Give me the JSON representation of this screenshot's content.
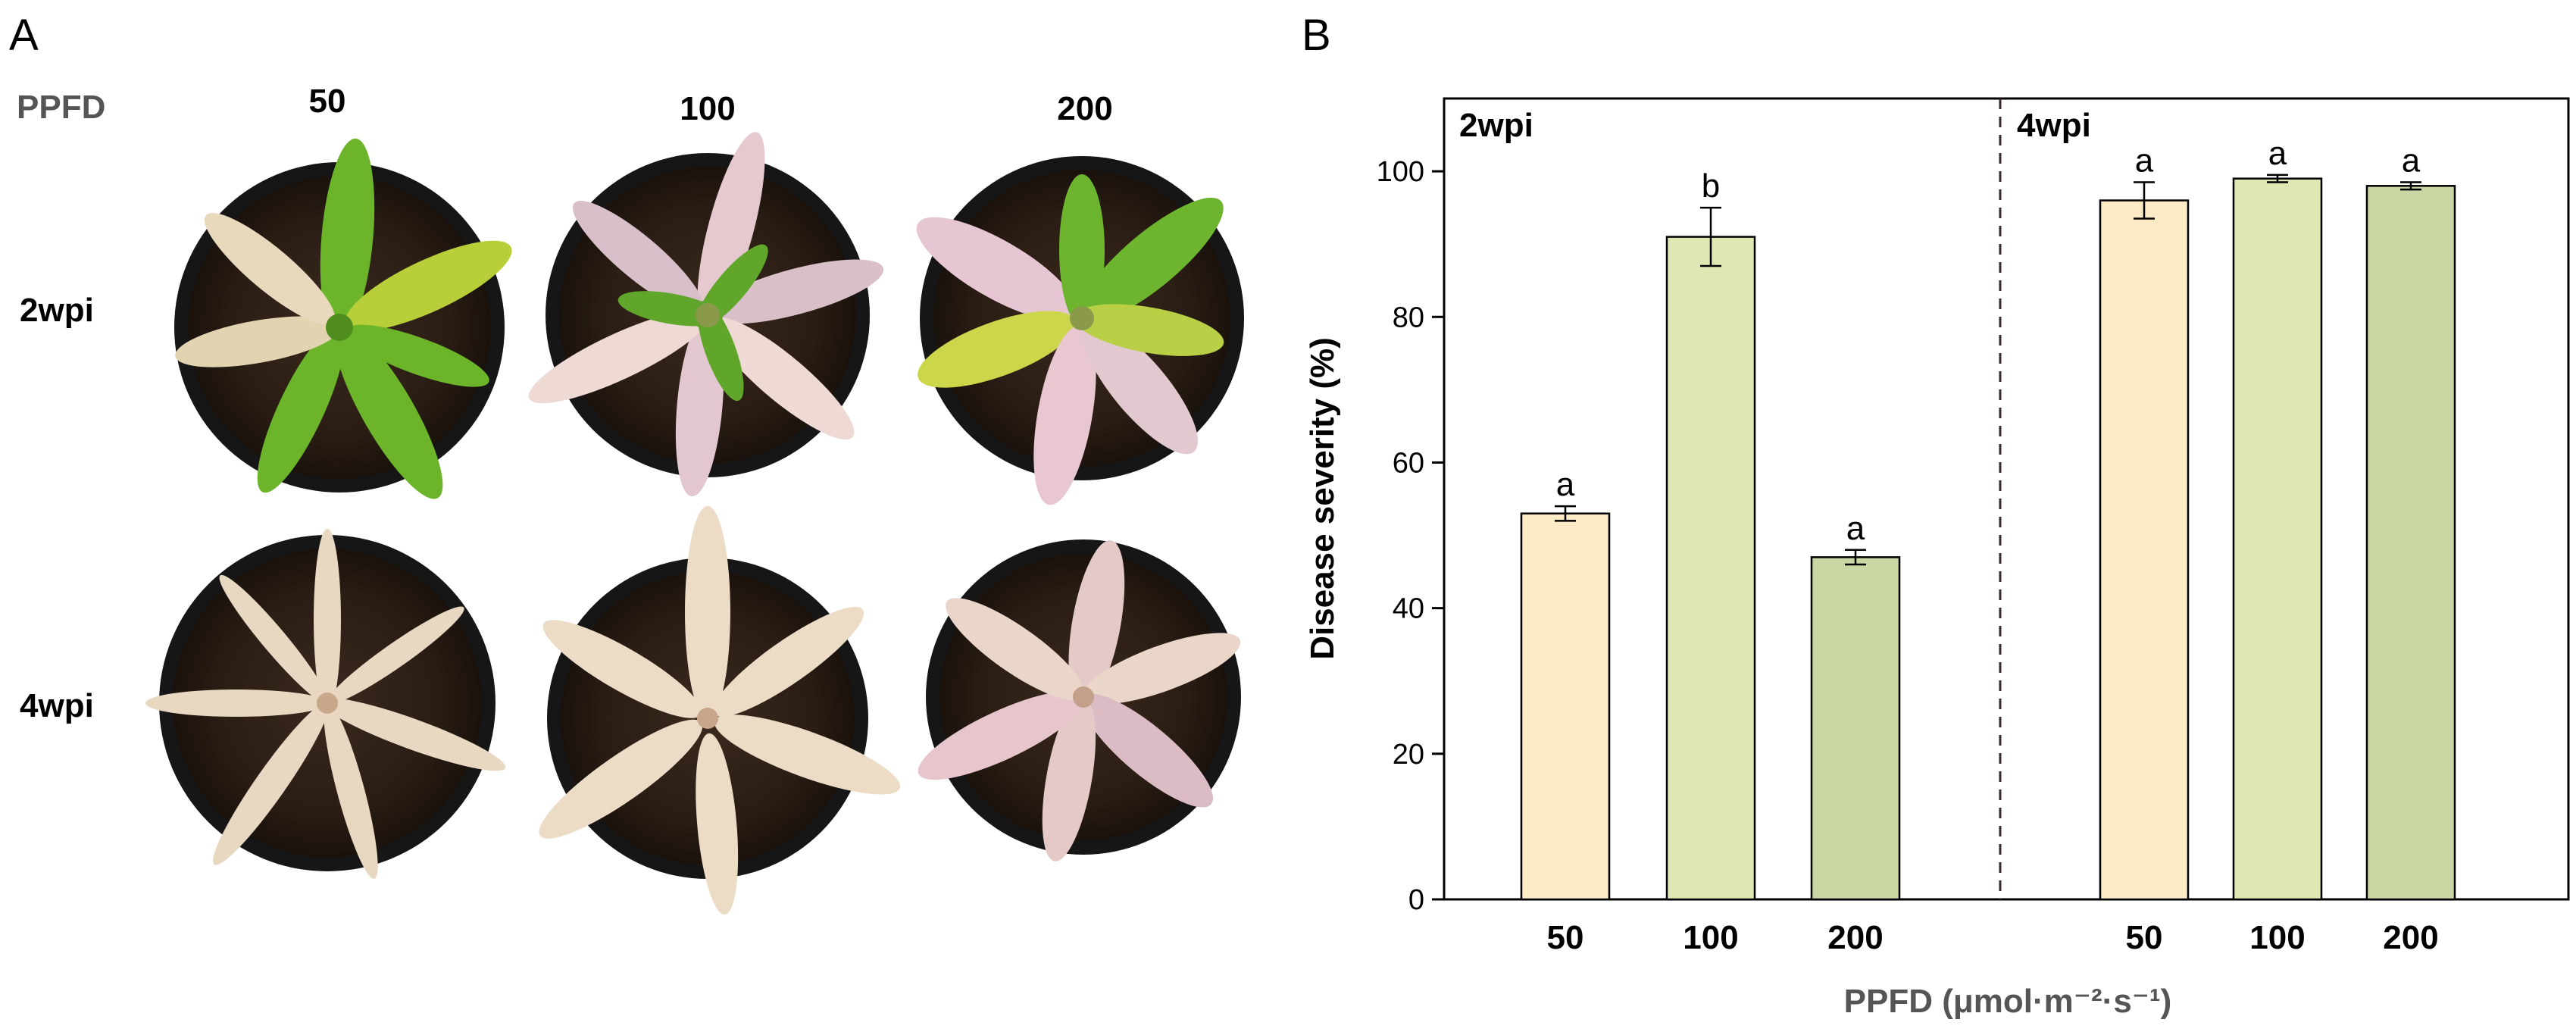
{
  "panel_a": {
    "letter": "A",
    "row_header": "PPFD",
    "columns": [
      "50",
      "100",
      "200"
    ],
    "rows": [
      "2wpi",
      "4wpi"
    ]
  },
  "panel_b": {
    "letter": "B"
  },
  "chart_data": {
    "type": "bar",
    "ylabel": "Disease severity (%)",
    "xlabel": "PPFD (μmol·m⁻²·s⁻¹)",
    "ylim": [
      0,
      110
    ],
    "yticks": [
      0,
      20,
      40,
      60,
      80,
      100
    ],
    "groups": [
      {
        "name": "2wpi",
        "bars": [
          {
            "category": "50",
            "value": 53,
            "error": 1,
            "letter": "a",
            "color": "#fdebc7"
          },
          {
            "category": "100",
            "value": 91,
            "error": 4,
            "letter": "b",
            "color": "#dfe8b4"
          },
          {
            "category": "200",
            "value": 47,
            "error": 1,
            "letter": "a",
            "color": "#c8d7a4"
          }
        ]
      },
      {
        "name": "4wpi",
        "bars": [
          {
            "category": "50",
            "value": 96,
            "error": 2.5,
            "letter": "a",
            "color": "#fdebc7"
          },
          {
            "category": "100",
            "value": 99,
            "error": 0.5,
            "letter": "a",
            "color": "#dfe8b4"
          },
          {
            "category": "200",
            "value": 98,
            "error": 0.5,
            "letter": "a",
            "color": "#c8d7a4"
          }
        ]
      }
    ]
  }
}
